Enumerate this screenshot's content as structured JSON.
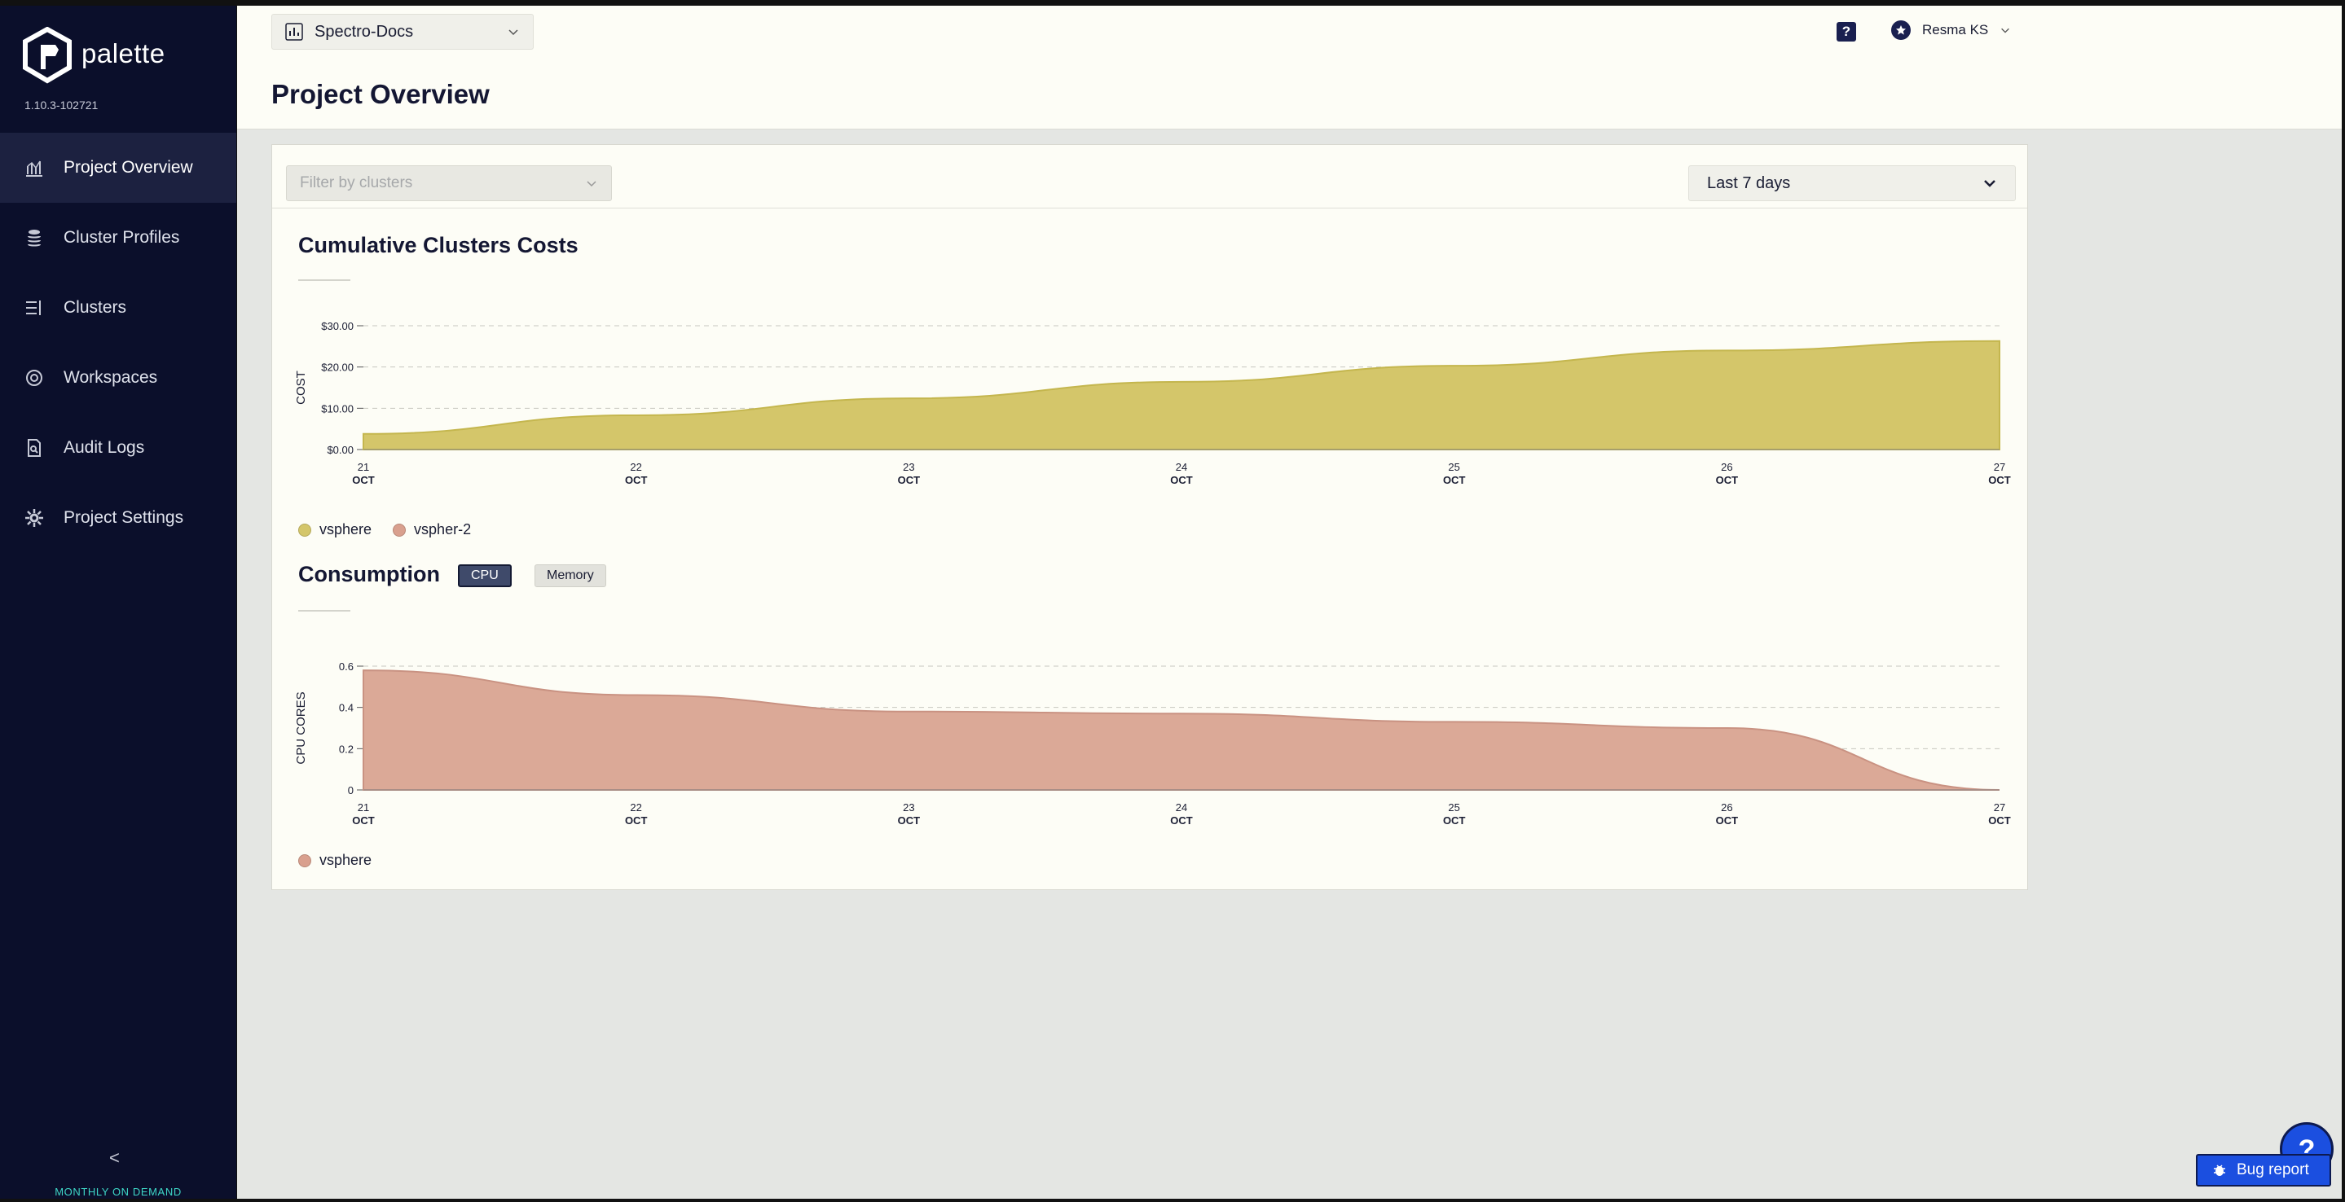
{
  "sidebar": {
    "brand": "palette",
    "version": "1.10.3-102721",
    "items": [
      {
        "label": "Project Overview",
        "icon": "chart-icon"
      },
      {
        "label": "Cluster Profiles",
        "icon": "stack-icon"
      },
      {
        "label": "Clusters",
        "icon": "list-icon"
      },
      {
        "label": "Workspaces",
        "icon": "target-icon"
      },
      {
        "label": "Audit Logs",
        "icon": "search-doc-icon"
      },
      {
        "label": "Project Settings",
        "icon": "gear-icon"
      }
    ],
    "collapse_label": "<",
    "plan": "MONTHLY ON DEMAND"
  },
  "header": {
    "project": "Spectro-Docs",
    "title": "Project Overview",
    "help": "?",
    "user": "Resma KS"
  },
  "filters": {
    "cluster_placeholder": "Filter by clusters",
    "range": "Last 7 days"
  },
  "costs": {
    "title": "Cumulative Clusters Costs",
    "legend": [
      "vsphere",
      "vspher-2"
    ]
  },
  "consumption": {
    "title": "Consumption",
    "toggle_cpu": "CPU",
    "toggle_memory": "Memory",
    "legend": [
      "vsphere"
    ]
  },
  "colors": {
    "vsphere_cost": "#d4c66a",
    "vspher2": "#d9a08e",
    "cpu_area": "#dba997",
    "accent": "#1b4fe0"
  },
  "chart_data": [
    {
      "type": "area",
      "ylabel": "COST",
      "x": [
        "21 OCT",
        "22 OCT",
        "23 OCT",
        "24 OCT",
        "25 OCT",
        "26 OCT",
        "27 OCT"
      ],
      "yticks": [
        "$0.00",
        "$10.00",
        "$20.00",
        "$30.00"
      ],
      "ylim": [
        0,
        30
      ],
      "series": [
        {
          "name": "vsphere",
          "values": [
            3.8,
            8.3,
            12.4,
            16.4,
            20.3,
            24.0,
            26.3
          ]
        }
      ],
      "grid": true
    },
    {
      "type": "area",
      "ylabel": "CPU CORES",
      "x": [
        "21 OCT",
        "22 OCT",
        "23 OCT",
        "24 OCT",
        "25 OCT",
        "26 OCT",
        "27 OCT"
      ],
      "yticks": [
        "0",
        "0.2",
        "0.4",
        "0.6"
      ],
      "ylim": [
        0,
        0.6
      ],
      "series": [
        {
          "name": "vsphere",
          "values": [
            0.58,
            0.46,
            0.38,
            0.37,
            0.33,
            0.3,
            0.0
          ]
        }
      ],
      "grid": true
    }
  ],
  "bug_report": "Bug report",
  "help_fab": "?"
}
